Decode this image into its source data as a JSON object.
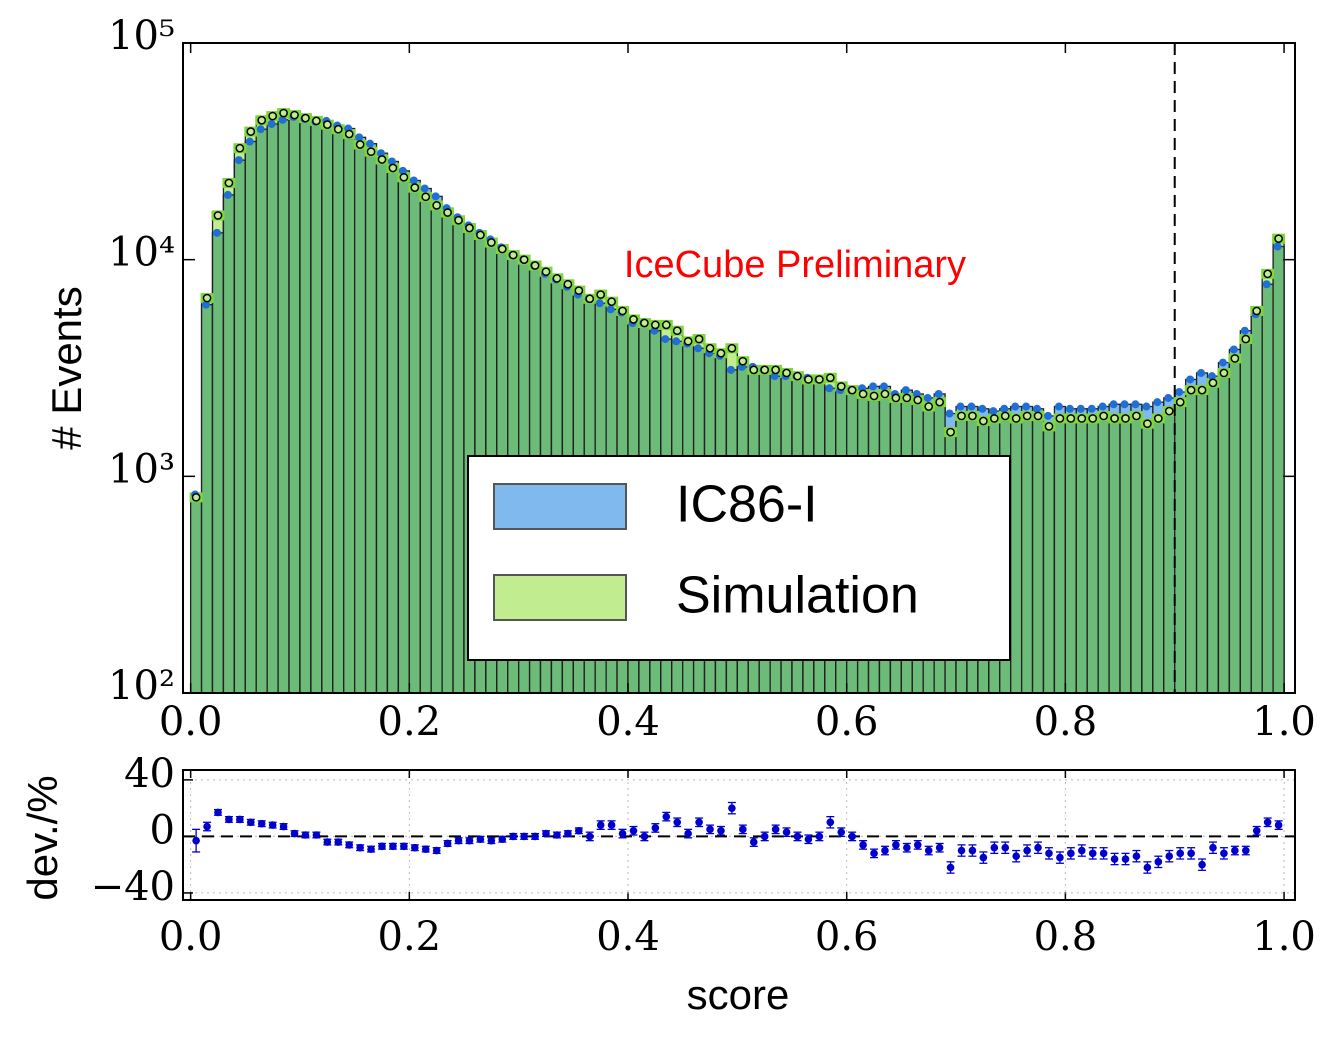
{
  "chart_data": [
    {
      "type": "histogram",
      "ylabel": "# Events",
      "annotation": "IceCube Preliminary",
      "annotation_color": "#ff0000",
      "cut": 0.9,
      "log_y": true,
      "legend": "lower center",
      "overlap_color": "#6cbb78",
      "xlim": [
        -0.007,
        1.01
      ],
      "ylim": [
        100,
        100000
      ],
      "xticks": [
        {
          "value": 0,
          "label": "0.0"
        },
        0.2,
        0.4,
        0.6,
        0.8,
        {
          "value": 1,
          "label": "1.0"
        }
      ],
      "yticks": [
        {
          "value": 100,
          "label": "10²"
        },
        {
          "value": 1000,
          "label": "10³"
        },
        {
          "value": 10000,
          "label": "10⁴"
        },
        {
          "value": 100000,
          "label": "10⁵"
        }
      ],
      "bins": [
        0,
        0.01,
        0.02,
        0.03,
        0.04,
        0.05,
        0.06,
        0.07,
        0.08,
        0.09,
        0.1,
        0.11,
        0.12,
        0.13,
        0.14,
        0.15,
        0.16,
        0.17,
        0.18,
        0.19,
        0.2,
        0.21,
        0.22,
        0.23,
        0.24,
        0.25,
        0.26,
        0.27,
        0.28,
        0.29,
        0.3,
        0.31,
        0.32,
        0.33,
        0.34,
        0.35,
        0.36,
        0.37,
        0.38,
        0.39,
        0.4,
        0.41,
        0.42,
        0.43,
        0.44,
        0.45,
        0.46,
        0.47,
        0.48,
        0.49,
        0.5,
        0.51,
        0.52,
        0.53,
        0.54,
        0.55,
        0.56,
        0.57,
        0.58,
        0.59,
        0.6,
        0.61,
        0.62,
        0.63,
        0.64,
        0.65,
        0.66,
        0.67,
        0.68,
        0.69,
        0.7,
        0.71,
        0.72,
        0.73,
        0.74,
        0.75,
        0.76,
        0.77,
        0.78,
        0.79,
        0.8,
        0.81,
        0.82,
        0.83,
        0.84,
        0.85,
        0.86,
        0.87,
        0.88,
        0.89,
        0.9,
        0.91,
        0.92,
        0.93,
        0.94,
        0.95,
        0.96,
        0.97,
        0.98,
        0.99,
        1
      ],
      "series": [
        {
          "name": "IC86-I",
          "color": "#80b9ee",
          "marker_color": "#1f6fd6",
          "values": [
            824,
            6200,
            13300,
            19900,
            28800,
            35100,
            40000,
            42300,
            44200,
            45600,
            44600,
            43300,
            43700,
            41600,
            40300,
            36700,
            34300,
            31000,
            28400,
            25700,
            23200,
            21300,
            19600,
            17300,
            15700,
            14400,
            13300,
            12400,
            11400,
            10500,
            10000,
            9400,
            8600,
            8100,
            7500,
            6900,
            6600,
            6300,
            5900,
            5700,
            5100,
            5100,
            4700,
            4300,
            4200,
            4100,
            3900,
            3700,
            3600,
            3100,
            3200,
            3200,
            3100,
            2900,
            2900,
            2900,
            2850,
            2800,
            2550,
            2500,
            2500,
            2550,
            2600,
            2600,
            2400,
            2500,
            2400,
            2300,
            2400,
            1950,
            2100,
            2100,
            2050,
            2000,
            2050,
            2100,
            2100,
            2050,
            1900,
            2100,
            2050,
            2050,
            2050,
            2100,
            2150,
            2150,
            2150,
            2100,
            2200,
            2300,
            2450,
            2800,
            3000,
            2900,
            3350,
            3850,
            4700,
            5600,
            7700,
            11500
          ]
        },
        {
          "name": "Simulation",
          "color": "#c1ec8f",
          "marker_color": "#7ed63a",
          "values": [
            800,
            6650,
            16000,
            22600,
            32700,
            39000,
            44000,
            46000,
            47500,
            46500,
            45000,
            43700,
            42000,
            40000,
            38000,
            34000,
            31500,
            29000,
            26500,
            24000,
            21500,
            19500,
            17800,
            16500,
            15200,
            14000,
            13000,
            12000,
            11200,
            10500,
            10000,
            9400,
            8800,
            8200,
            7700,
            7200,
            6600,
            6900,
            6400,
            5800,
            5300,
            5100,
            5000,
            5000,
            4700,
            4200,
            4300,
            3900,
            3700,
            3900,
            3400,
            3100,
            3100,
            3100,
            3000,
            2900,
            2800,
            2800,
            2850,
            2600,
            2500,
            2400,
            2350,
            2400,
            2300,
            2300,
            2250,
            2100,
            2200,
            1600,
            1900,
            1900,
            1800,
            1850,
            1900,
            1850,
            1900,
            1900,
            1700,
            1850,
            1850,
            1850,
            1850,
            1900,
            1850,
            1850,
            1900,
            1750,
            1850,
            2000,
            2200,
            2500,
            2500,
            2700,
            3000,
            3500,
            4300,
            5800,
            8600,
            12500
          ]
        }
      ]
    },
    {
      "type": "errorbar",
      "ylabel": "dev./%",
      "xlabel": "score",
      "color": "#0000cc",
      "grid": true,
      "xlim": [
        -0.007,
        1.01
      ],
      "ylim": [
        -45,
        47
      ],
      "xticks": [
        {
          "value": 0,
          "label": "0.0"
        },
        0.2,
        0.4,
        0.6,
        0.8,
        {
          "value": 1,
          "label": "1.0"
        }
      ],
      "yticks": [
        {
          "value": -40,
          "label": "−40"
        },
        0,
        40
      ],
      "x": [
        0.005,
        0.015,
        0.025,
        0.035,
        0.045,
        0.055,
        0.065,
        0.075,
        0.085,
        0.095,
        0.105,
        0.115,
        0.125,
        0.135,
        0.145,
        0.155,
        0.165,
        0.175,
        0.185,
        0.195,
        0.205,
        0.215,
        0.225,
        0.235,
        0.245,
        0.255,
        0.265,
        0.275,
        0.285,
        0.295,
        0.305,
        0.315,
        0.325,
        0.335,
        0.345,
        0.355,
        0.365,
        0.375,
        0.385,
        0.395,
        0.405,
        0.415,
        0.425,
        0.435,
        0.445,
        0.455,
        0.465,
        0.475,
        0.485,
        0.495,
        0.505,
        0.515,
        0.525,
        0.535,
        0.545,
        0.555,
        0.565,
        0.575,
        0.585,
        0.595,
        0.605,
        0.615,
        0.625,
        0.635,
        0.645,
        0.655,
        0.665,
        0.675,
        0.685,
        0.695,
        0.705,
        0.715,
        0.725,
        0.735,
        0.745,
        0.755,
        0.765,
        0.775,
        0.785,
        0.795,
        0.805,
        0.815,
        0.825,
        0.835,
        0.845,
        0.855,
        0.865,
        0.875,
        0.885,
        0.895,
        0.905,
        0.915,
        0.925,
        0.935,
        0.945,
        0.955,
        0.965,
        0.975,
        0.985,
        0.995
      ],
      "values": [
        -3,
        7,
        17,
        12,
        12,
        10,
        9,
        8,
        7,
        2,
        1,
        1,
        -4,
        -4,
        -6,
        -8,
        -9,
        -7,
        -7,
        -7,
        -8,
        -9,
        -10,
        -5,
        -3,
        -3,
        -2,
        -3,
        -2,
        0,
        0,
        0,
        2,
        1,
        2,
        4,
        0,
        8,
        8,
        2,
        4,
        0,
        6,
        14,
        10,
        2,
        10,
        5,
        4,
        20,
        5,
        -4,
        0,
        5,
        3,
        0,
        -2,
        0,
        10,
        3,
        0,
        -6,
        -12,
        -10,
        -6,
        -8,
        -6,
        -10,
        -8,
        -22,
        -10,
        -10,
        -15,
        -8,
        -8,
        -14,
        -10,
        -8,
        -12,
        -15,
        -12,
        -10,
        -12,
        -12,
        -16,
        -16,
        -14,
        -22,
        -18,
        -14,
        -12,
        -12,
        -20,
        -8,
        -12,
        -10,
        -10,
        4,
        10,
        8
      ],
      "errors": [
        8,
        3,
        2,
        2,
        2,
        2,
        2,
        2,
        2,
        2,
        2,
        2,
        2,
        2,
        2,
        2,
        2,
        2,
        2,
        2,
        2,
        2,
        2,
        2,
        2,
        2,
        2,
        2,
        2,
        2,
        2,
        2,
        2,
        2,
        2,
        2,
        3,
        3,
        3,
        3,
        3,
        3,
        3,
        3,
        3,
        3,
        3,
        3,
        3,
        4,
        3,
        3,
        3,
        3,
        3,
        3,
        3,
        3,
        4,
        3,
        3,
        3,
        3,
        3,
        3,
        3,
        3,
        3,
        3,
        4,
        4,
        4,
        4,
        4,
        4,
        4,
        4,
        4,
        4,
        4,
        4,
        4,
        4,
        4,
        4,
        4,
        4,
        4,
        4,
        4,
        4,
        4,
        4,
        4,
        4,
        3,
        3,
        3,
        3,
        3
      ]
    }
  ]
}
